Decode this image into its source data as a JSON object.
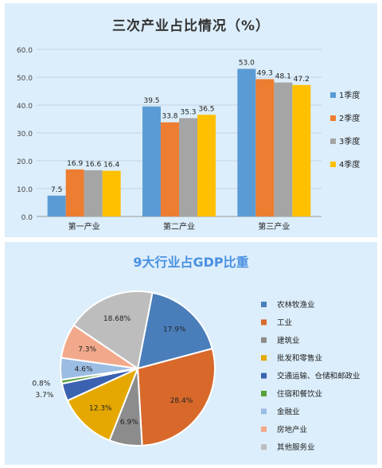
{
  "chart_data": [
    {
      "type": "bar",
      "title": "三次产业占比情况（%）",
      "categories": [
        "第一产业",
        "第二产业",
        "第三产业"
      ],
      "series": [
        {
          "name": "1季度",
          "values": [
            7.5,
            39.5,
            53.0
          ],
          "color": "#5b9bd5"
        },
        {
          "name": "2季度",
          "values": [
            16.9,
            33.8,
            49.3
          ],
          "color": "#ed7d31"
        },
        {
          "name": "3季度",
          "values": [
            16.6,
            35.3,
            48.1
          ],
          "color": "#a5a5a5"
        },
        {
          "name": "4季度",
          "values": [
            16.4,
            36.5,
            47.2
          ],
          "color": "#ffc000"
        }
      ],
      "value_labels": [
        [
          "7.5",
          "39.5",
          "53.0"
        ],
        [
          "16.9",
          "33.8",
          "49.3"
        ],
        [
          "16.6",
          "35.3",
          "48.1"
        ],
        [
          "16.4",
          "36.5",
          "47.2"
        ]
      ],
      "yticks": [
        "0.0",
        "10.0",
        "20.0",
        "30.0",
        "40.0",
        "50.0",
        "60.0"
      ],
      "ylim": [
        0,
        60
      ],
      "grid": true,
      "legend": "right"
    },
    {
      "type": "pie",
      "title": "9大行业占GDP比重",
      "categories": [
        "农林牧渔业",
        "工业",
        "建筑业",
        "批发和零售业",
        "交通运输、仓储和邮政业",
        "住宿和餐饮业",
        "金融业",
        "房地产业",
        "其他服务业"
      ],
      "values": [
        17.9,
        28.4,
        6.9,
        12.3,
        3.7,
        0.8,
        4.6,
        7.3,
        18.68
      ],
      "labels": [
        "17.9%",
        "28.4%",
        "6.9%",
        "12.3%",
        "3.7%",
        "0.8%",
        "4.6%",
        "7.3%",
        "18.68%"
      ],
      "colors": [
        "#4a7ebb",
        "#d8692b",
        "#8c8c8c",
        "#e5a800",
        "#3b62b0",
        "#5aa03a",
        "#9cbde3",
        "#f2a98b",
        "#bdbdbd"
      ],
      "legend": "right"
    }
  ]
}
